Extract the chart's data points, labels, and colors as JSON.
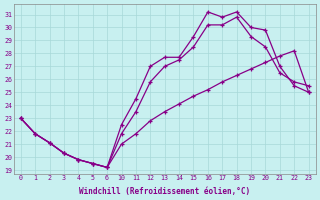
{
  "xlabel": "Windchill (Refroidissement éolien,°C)",
  "background_color": "#c8f0f0",
  "line_color": "#880088",
  "ylim": [
    18.7,
    31.8
  ],
  "xlabels": [
    "0",
    "1",
    "2",
    "3",
    "4",
    "5",
    "6",
    "10",
    "11",
    "12",
    "13",
    "14",
    "15",
    "16",
    "17",
    "18",
    "19",
    "20",
    "21",
    "22",
    "23"
  ],
  "yticks": [
    19,
    20,
    21,
    22,
    23,
    24,
    25,
    26,
    27,
    28,
    29,
    30,
    31
  ],
  "line1_y": [
    23.0,
    21.8,
    21.1,
    20.3,
    19.8,
    19.5,
    19.2,
    22.5,
    24.5,
    27.0,
    27.7,
    27.7,
    29.3,
    31.2,
    30.8,
    31.2,
    30.0,
    29.8,
    27.0,
    25.5,
    25.0
  ],
  "line2_y": [
    23.0,
    21.8,
    21.1,
    20.3,
    19.8,
    19.5,
    19.2,
    21.8,
    23.5,
    25.8,
    27.0,
    27.5,
    28.5,
    30.2,
    30.2,
    30.8,
    29.3,
    28.5,
    26.5,
    25.8,
    25.5
  ],
  "line3_y": [
    23.0,
    21.8,
    21.1,
    20.3,
    19.8,
    19.5,
    19.2,
    21.0,
    21.8,
    22.8,
    23.5,
    24.1,
    24.7,
    25.2,
    25.8,
    26.3,
    26.8,
    27.3,
    27.8,
    28.2,
    25.0
  ]
}
